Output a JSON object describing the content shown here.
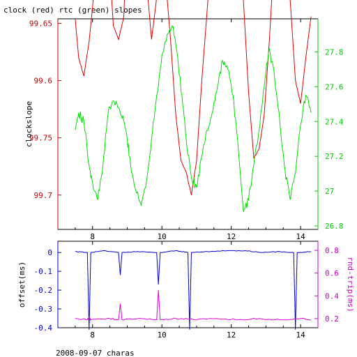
{
  "chart_data": [
    {
      "type": "line",
      "title": "clock (red) rtc (green) slopes",
      "xlabel": "",
      "ylabel": "clockslope",
      "y2label": "",
      "xlim": [
        7.0,
        14.5
      ],
      "ylim": [
        99.675,
        99.767
      ],
      "y2lim": [
        26.78,
        27.99
      ],
      "xticks": [
        "8",
        "10",
        "12",
        "14"
      ],
      "yticks": [
        "99.65",
        "99.6",
        "99.75",
        "99.7"
      ],
      "y2ticks": [
        "27.8",
        "27.6",
        "27.4",
        "27.2",
        "27",
        "26.8"
      ],
      "colors": {
        "left": "#cc0000",
        "right": "#00cc00"
      },
      "series": [
        {
          "axis": "left",
          "color": "#dd0000",
          "x": [
            7.5,
            7.6,
            7.75,
            7.9,
            8.0,
            8.1,
            8.2,
            8.3,
            8.45,
            8.6,
            8.75,
            8.9,
            9.0,
            9.1,
            9.25,
            9.4,
            9.55,
            9.7,
            9.8,
            9.95,
            10.1,
            10.25,
            10.4,
            10.55,
            10.7,
            10.85,
            11.0,
            11.15,
            11.3,
            11.45,
            11.6,
            11.75,
            11.9,
            12.05,
            12.2,
            12.35,
            12.5,
            12.65,
            12.8,
            12.95,
            13.1,
            13.25,
            13.4,
            13.55,
            13.7,
            13.85,
            14.0,
            14.15,
            14.3
          ],
          "y": [
            99.767,
            99.75,
            99.742,
            99.757,
            99.772,
            99.79,
            99.803,
            99.83,
            99.8,
            99.764,
            99.758,
            99.768,
            99.805,
            99.832,
            99.838,
            99.825,
            99.785,
            99.758,
            99.77,
            99.79,
            99.785,
            99.758,
            99.725,
            99.705,
            99.7,
            99.69,
            99.705,
            99.74,
            99.77,
            99.8,
            99.82,
            99.84,
            99.855,
            99.858,
            99.82,
            99.775,
            99.735,
            99.706,
            99.71,
            99.725,
            99.758,
            99.797,
            99.838,
            99.81,
            99.775,
            99.74,
            99.73,
            99.75,
            99.768
          ]
        },
        {
          "axis": "right",
          "color": "#00dd00",
          "x": [
            7.5,
            7.6,
            7.75,
            7.9,
            8.0,
            8.15,
            8.3,
            8.45,
            8.6,
            8.75,
            8.9,
            9.0,
            9.1,
            9.25,
            9.4,
            9.55,
            9.7,
            9.85,
            10.0,
            10.15,
            10.3,
            10.45,
            10.6,
            10.7,
            10.85,
            11.0,
            11.15,
            11.3,
            11.45,
            11.6,
            11.75,
            11.9,
            12.05,
            12.2,
            12.35,
            12.5,
            12.65,
            12.8,
            12.95,
            13.1,
            13.25,
            13.4,
            13.55,
            13.7,
            13.85,
            14.0,
            14.15,
            14.3
          ],
          "y": [
            27.35,
            27.45,
            27.4,
            27.15,
            27.05,
            26.95,
            27.15,
            27.45,
            27.52,
            27.48,
            27.4,
            27.3,
            27.15,
            27.0,
            26.92,
            27.05,
            27.3,
            27.55,
            27.78,
            27.9,
            27.95,
            27.78,
            27.5,
            27.3,
            27.08,
            27.02,
            27.2,
            27.35,
            27.45,
            27.6,
            27.75,
            27.7,
            27.55,
            27.25,
            26.88,
            26.95,
            27.15,
            27.35,
            27.6,
            27.82,
            27.65,
            27.4,
            27.12,
            26.95,
            27.1,
            27.38,
            27.55,
            27.45
          ]
        }
      ]
    },
    {
      "type": "line",
      "title": "",
      "xlabel": "2008-09-07 charas",
      "ylabel": "offset(ms)",
      "y2label": "rnd-trip(ms)",
      "xlim": [
        7.0,
        14.5
      ],
      "ylim": [
        -0.4,
        0.06
      ],
      "y2lim": [
        0.12,
        0.88
      ],
      "xticks": [
        "8",
        "10",
        "12",
        "14"
      ],
      "yticks": [
        "0",
        "-0.1",
        "-0.2",
        "-0.3",
        "-0.4"
      ],
      "y2ticks": [
        "0.8",
        "0.6",
        "0.4",
        "0.2"
      ],
      "colors": {
        "left": "#0000cc",
        "right": "#cc00cc"
      },
      "series": [
        {
          "axis": "left",
          "color": "#0000cc",
          "x": [
            7.5,
            7.85,
            7.9,
            7.95,
            8.3,
            8.75,
            8.8,
            8.85,
            9.3,
            9.85,
            9.9,
            9.95,
            10.4,
            10.75,
            10.8,
            10.85,
            11.3,
            11.9,
            12.4,
            12.9,
            13.4,
            13.8,
            13.85,
            13.9,
            14.3
          ],
          "y": [
            0.005,
            0.0,
            -0.41,
            0.0,
            0.01,
            0.0,
            -0.12,
            0.0,
            0.005,
            0.0,
            -0.17,
            0.0,
            0.01,
            0.0,
            -0.41,
            0.0,
            0.005,
            0.01,
            0.01,
            0.0,
            0.005,
            0.0,
            -0.41,
            0.0,
            0.005
          ]
        },
        {
          "axis": "right",
          "color": "#dd00dd",
          "x": [
            7.5,
            7.85,
            7.9,
            7.95,
            8.5,
            8.75,
            8.8,
            8.85,
            9.3,
            9.85,
            9.9,
            9.95,
            10.4,
            11.0,
            11.6,
            12.2,
            12.8,
            13.4,
            14.0,
            14.3
          ],
          "y": [
            0.2,
            0.19,
            0.21,
            0.19,
            0.2,
            0.19,
            0.33,
            0.19,
            0.2,
            0.19,
            0.45,
            0.19,
            0.2,
            0.19,
            0.2,
            0.19,
            0.2,
            0.19,
            0.2,
            0.19
          ]
        }
      ]
    }
  ]
}
